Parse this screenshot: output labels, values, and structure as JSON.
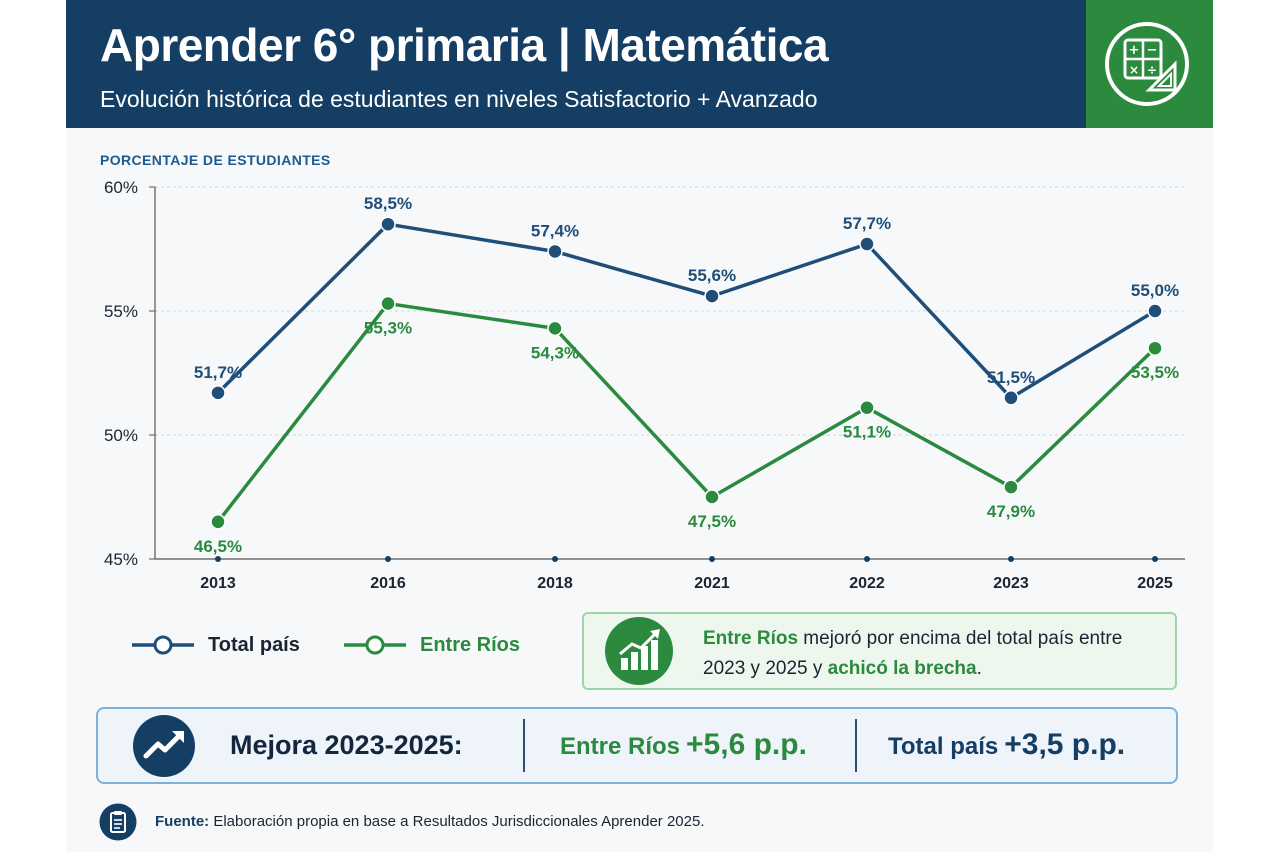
{
  "header": {
    "title": "Aprender 6° primaria | Matemática",
    "subtitle": "Evolución histórica de estudiantes en niveles Satisfactorio + Avanzado",
    "badge_icon": "math-calculator-ruler-icon",
    "colors": {
      "navy": "#153e65",
      "green": "#2b8a3e"
    }
  },
  "chart_data": {
    "type": "line",
    "ylabel": "PORCENTAJE DE ESTUDIANTES",
    "xlabel": "",
    "categories": [
      "2013",
      "2016",
      "2018",
      "2021",
      "2022",
      "2023",
      "2025"
    ],
    "ylim": [
      45,
      60
    ],
    "yticks": [
      45,
      50,
      55,
      60
    ],
    "ytick_labels": [
      "45%",
      "50%",
      "55%",
      "60%"
    ],
    "grid": true,
    "legend_position": "bottom-left",
    "series": [
      {
        "name": "Total país",
        "color": "#1f4e79",
        "values": [
          51.7,
          58.5,
          57.4,
          55.6,
          57.7,
          51.5,
          55.0
        ],
        "labels": [
          "51,7%",
          "58,5%",
          "57,4%",
          "55,6%",
          "57,7%",
          "51,5%",
          "55,0%"
        ]
      },
      {
        "name": "Entre Ríos",
        "color": "#2b8a3e",
        "values": [
          46.5,
          55.3,
          54.3,
          47.5,
          51.1,
          47.9,
          53.5
        ],
        "labels": [
          "46,5%",
          "55,3%",
          "54,3%",
          "47,5%",
          "51,1%",
          "47,9%",
          "53,5%"
        ]
      }
    ]
  },
  "note": {
    "icon": "growth-bar-chart-icon",
    "part1": "Entre Ríos",
    "part2": " mejoró por encima del total país entre 2023 y 2025 y ",
    "part3": "achicó la brecha",
    "part4": "."
  },
  "summary": {
    "icon": "trend-up-arrow-icon",
    "label": "Mejora 2023-2025:",
    "entre_rios_label": "Entre Ríos",
    "entre_rios_value": "+5,6 p.p.",
    "total_pais_label": "Total país",
    "total_pais_value": "+3,5 p.p."
  },
  "footer": {
    "icon": "clipboard-icon",
    "source_label": "Fuente:",
    "source_text": " Elaboración propia en base a Resultados Jurisdiccionales Aprender 2025."
  }
}
